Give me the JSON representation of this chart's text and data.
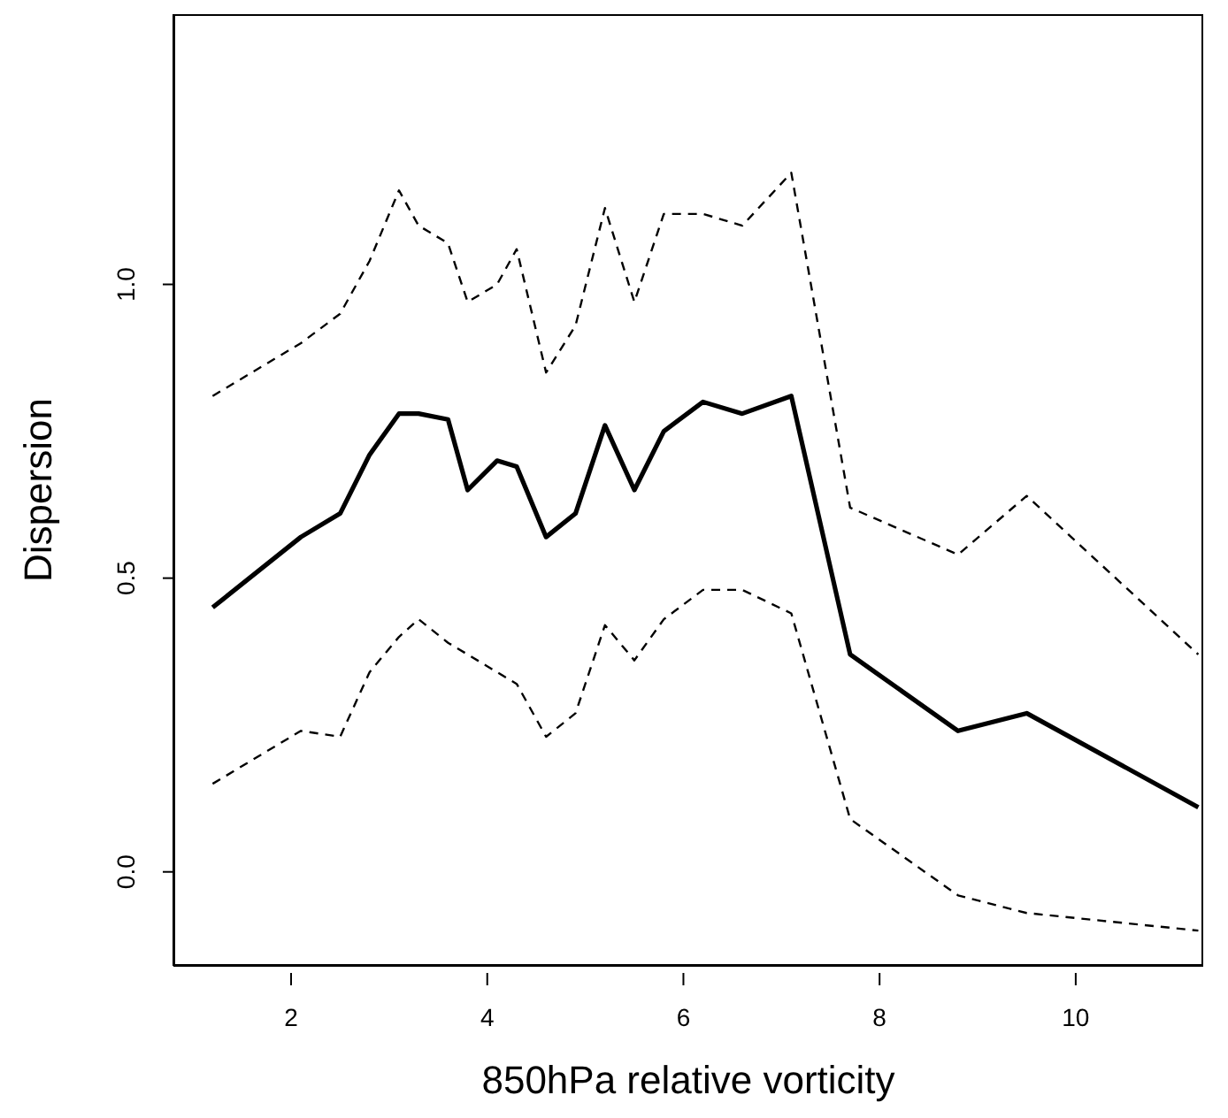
{
  "chart_data": {
    "type": "line",
    "xlabel": "850hPa relative vorticity",
    "ylabel": "Dispersion",
    "x": [
      1.2,
      2.1,
      2.5,
      2.8,
      3.1,
      3.3,
      3.6,
      3.8,
      4.1,
      4.3,
      4.6,
      4.9,
      5.2,
      5.5,
      5.8,
      6.2,
      6.6,
      7.1,
      7.7,
      8.8,
      9.5,
      11.25
    ],
    "series": [
      {
        "color": "#000000",
        "line_style": "dashed",
        "values": [
          0.81,
          0.9,
          0.95,
          1.04,
          1.16,
          1.1,
          1.07,
          0.97,
          1.0,
          1.06,
          0.85,
          0.93,
          1.13,
          0.97,
          1.12,
          1.12,
          1.1,
          1.19,
          0.62,
          0.54,
          0.64,
          0.37
        ]
      },
      {
        "color": "#000000",
        "line_style": "solid",
        "values": [
          0.45,
          0.57,
          0.61,
          0.71,
          0.78,
          0.78,
          0.77,
          0.65,
          0.7,
          0.69,
          0.57,
          0.61,
          0.76,
          0.65,
          0.75,
          0.8,
          0.78,
          0.81,
          0.37,
          0.24,
          0.27,
          0.11
        ]
      },
      {
        "color": "#000000",
        "line_style": "dashed",
        "values": [
          0.15,
          0.24,
          0.23,
          0.34,
          0.4,
          0.43,
          0.39,
          0.37,
          0.34,
          0.32,
          0.23,
          0.27,
          0.42,
          0.36,
          0.43,
          0.48,
          0.48,
          0.44,
          0.09,
          -0.04,
          -0.07,
          -0.1
        ]
      }
    ],
    "xlim": [
      0.8,
      11.3
    ],
    "ylim": [
      -0.16,
      1.46
    ],
    "xticks": [
      2,
      4,
      6,
      8,
      10
    ],
    "yticks": [
      {
        "value": 0,
        "label": "0.0"
      },
      {
        "value": 0.5,
        "label": "0.5"
      },
      {
        "value": 1,
        "label": "1.0"
      }
    ]
  }
}
